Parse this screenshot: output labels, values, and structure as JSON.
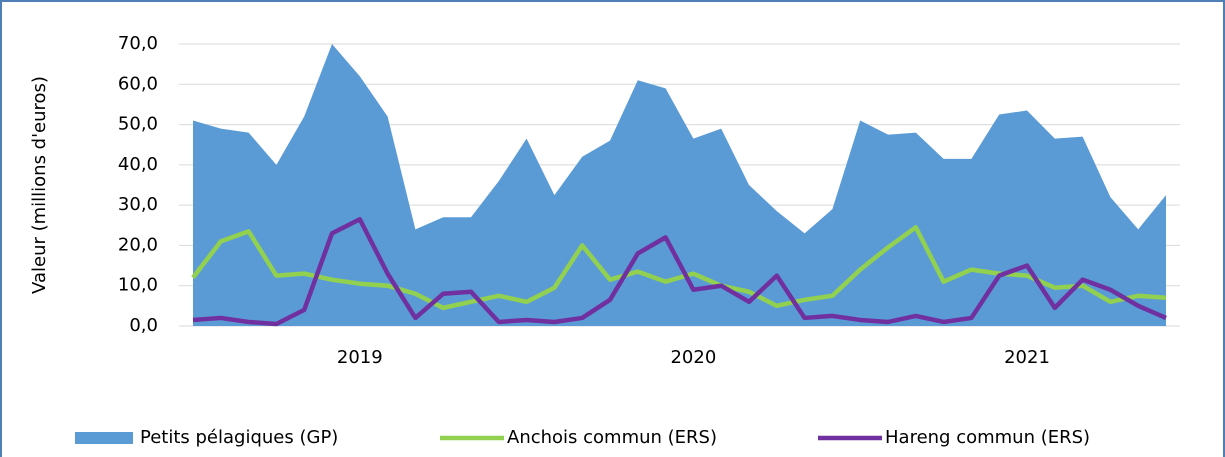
{
  "chart_data": {
    "type": "area_line",
    "y_label": "Valeur (millions d'euros)",
    "categories": [
      null,
      null,
      null,
      null,
      null,
      null,
      "2019",
      null,
      null,
      null,
      null,
      null,
      null,
      null,
      null,
      null,
      null,
      null,
      "2020",
      null,
      null,
      null,
      null,
      null,
      null,
      null,
      null,
      null,
      null,
      null,
      "2021",
      null,
      null,
      null,
      null,
      null
    ],
    "ylim": [
      0,
      70
    ],
    "yticks": [
      {
        "value": 0,
        "label": "0,0"
      },
      {
        "value": 10,
        "label": "10,0"
      },
      {
        "value": 20,
        "label": "20,0"
      },
      {
        "value": 30,
        "label": "30,0"
      },
      {
        "value": 40,
        "label": "40,0"
      },
      {
        "value": 50,
        "label": "50,0"
      },
      {
        "value": 60,
        "label": "60,0"
      },
      {
        "value": 70,
        "label": "70,0"
      }
    ],
    "grid": true,
    "legend": "bottom",
    "series": [
      {
        "name": "Petits pélagiques (GP)",
        "kind": "area",
        "color": "#5b9bd5",
        "values": [
          51,
          49,
          48,
          40,
          52,
          70,
          62,
          52,
          24,
          27,
          27,
          36,
          46.5,
          32.5,
          42,
          46,
          61,
          59,
          46.5,
          49,
          35,
          28.5,
          23,
          29,
          51,
          47.5,
          48,
          41.5,
          41.5,
          52.5,
          53.5,
          46.5,
          47,
          32,
          24,
          32.5
        ]
      },
      {
        "name": "Anchois commun (ERS)",
        "kind": "line",
        "color": "#92d050",
        "values": [
          12,
          21,
          23.5,
          12.5,
          13,
          11.5,
          10.5,
          10,
          8,
          4.5,
          6,
          7.5,
          6,
          9.5,
          20,
          11.5,
          13.5,
          11,
          13,
          10,
          8.5,
          5,
          6.5,
          7.5,
          14,
          19.5,
          24.5,
          11,
          14,
          13,
          12.5,
          9.5,
          10,
          6,
          7.5,
          7
        ]
      },
      {
        "name": "Hareng commun (ERS)",
        "kind": "line",
        "color": "#7030a0",
        "values": [
          1.5,
          2,
          1,
          0.5,
          4,
          23,
          26.5,
          13,
          2,
          8,
          8.5,
          1,
          1.5,
          1,
          2,
          6.5,
          18,
          22,
          9,
          10,
          6,
          12.5,
          2,
          2.5,
          1.5,
          1,
          2.5,
          1,
          2,
          12.5,
          15,
          4.5,
          11.5,
          9,
          5,
          2
        ]
      }
    ]
  }
}
